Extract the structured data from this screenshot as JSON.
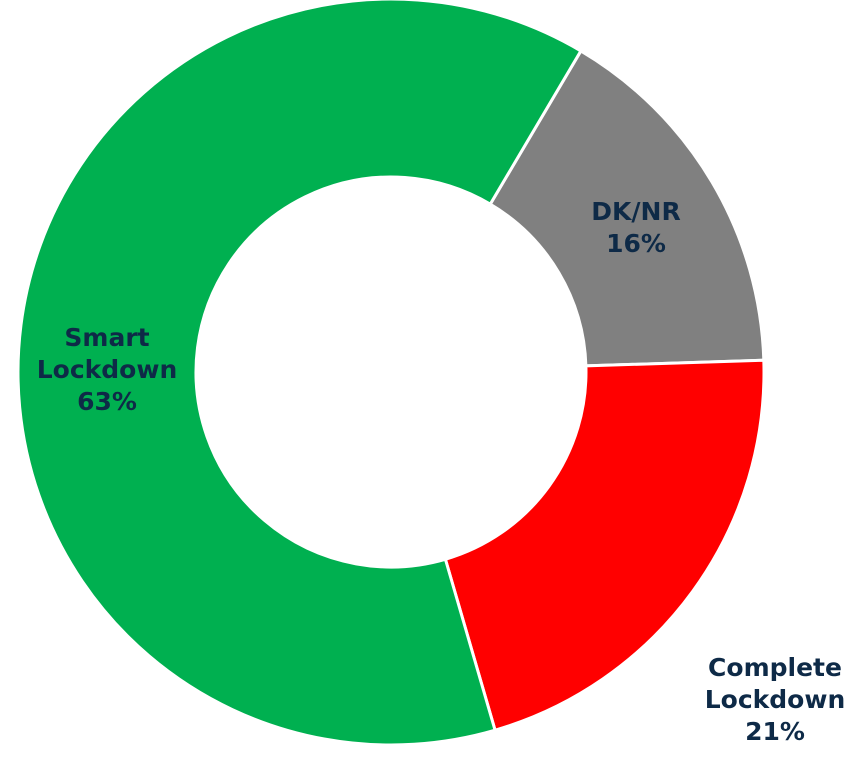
{
  "chart_data": {
    "type": "donut",
    "categories": [
      "DK/NR",
      "Complete Lockdown",
      "Smart Lockdown"
    ],
    "values": [
      16,
      21,
      63
    ],
    "value_labels": [
      "16%",
      "21%",
      "63%"
    ],
    "colors": [
      "#808080",
      "#ff0000",
      "#00b050"
    ]
  }
}
